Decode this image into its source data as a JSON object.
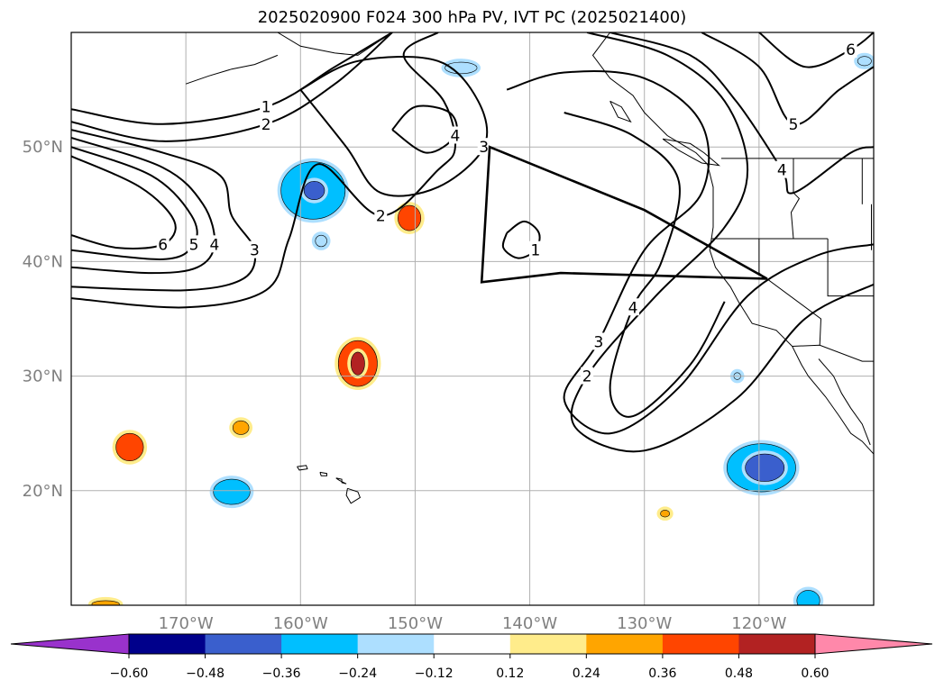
{
  "title": "2025020900 F024 300 hPa PV, IVT PC (2025021400)",
  "chart_data": {
    "type": "contour",
    "title": "2025020900 F024 300 hPa PV, IVT PC (2025021400)",
    "projection": "PlateCarree",
    "lon_range": [
      -180,
      -110
    ],
    "lat_range": [
      10,
      60
    ],
    "x_ticks": [
      {
        "value": -170,
        "label": "170°W"
      },
      {
        "value": -160,
        "label": "160°W"
      },
      {
        "value": -150,
        "label": "150°W"
      },
      {
        "value": -140,
        "label": "140°W"
      },
      {
        "value": -130,
        "label": "130°W"
      },
      {
        "value": -120,
        "label": "120°W"
      }
    ],
    "y_ticks": [
      {
        "value": 20,
        "label": "20°N"
      },
      {
        "value": 30,
        "label": "30°N"
      },
      {
        "value": 40,
        "label": "40°N"
      },
      {
        "value": 50,
        "label": "50°N"
      }
    ],
    "grid": true,
    "pv_contour_labels": [
      "1",
      "2",
      "3",
      "4",
      "5",
      "6"
    ],
    "colorbar": {
      "orientation": "horizontal",
      "extend": "both",
      "levels": [
        "-0.60",
        "-0.48",
        "-0.36",
        "-0.24",
        "-0.12",
        "0.12",
        "0.24",
        "0.36",
        "0.48",
        "0.60"
      ],
      "colors": [
        "#9932CC",
        "#00008B",
        "#3A5FCD",
        "#00BFFF",
        "#ADDFFF",
        "#FFFFFF",
        "#FFEC8B",
        "#FFA500",
        "#FF4500",
        "#B22222",
        "#FF88AA"
      ]
    },
    "region_box": [
      [
        -143.5,
        50
      ],
      [
        -130,
        44.5
      ],
      [
        -119.3,
        38.5
      ],
      [
        -137.3,
        39
      ],
      [
        -144.2,
        38.2
      ]
    ],
    "pv_contours": [
      {
        "level": "1",
        "points": [
          [
            -180,
            53.3
          ],
          [
            -172,
            52
          ],
          [
            -163,
            53.5
          ],
          [
            -157,
            57
          ],
          [
            -152,
            60
          ]
        ]
      },
      {
        "level": "2",
        "points": [
          [
            -180,
            52.2
          ],
          [
            -172,
            50.5
          ],
          [
            -163,
            52
          ],
          [
            -157,
            55.5
          ],
          [
            -152,
            60
          ]
        ]
      },
      {
        "level": "3",
        "points": [
          [
            -180,
            51.5
          ],
          [
            -172,
            49.5
          ],
          [
            -167,
            47.5
          ],
          [
            -166,
            44
          ],
          [
            -164,
            41
          ],
          [
            -165,
            38.5
          ],
          [
            -170,
            37.5
          ],
          [
            -180,
            37.8
          ]
        ]
      },
      {
        "level": "4",
        "points": [
          [
            -180,
            50.8
          ],
          [
            -172,
            48.2
          ],
          [
            -168.5,
            45
          ],
          [
            -167.5,
            41.5
          ],
          [
            -169,
            39.5
          ],
          [
            -173,
            39
          ],
          [
            -180,
            39.5
          ]
        ]
      },
      {
        "level": "5",
        "points": [
          [
            -180,
            50
          ],
          [
            -173,
            47.5
          ],
          [
            -169.5,
            44
          ],
          [
            -169.3,
            41.5
          ],
          [
            -172,
            40.2
          ],
          [
            -180,
            41
          ]
        ]
      },
      {
        "level": "6",
        "points": [
          [
            -180,
            49.2
          ],
          [
            -174,
            46.5
          ],
          [
            -171,
            43.5
          ],
          [
            -172,
            41.5
          ],
          [
            -176,
            41.2
          ],
          [
            -180,
            42.3
          ]
        ]
      },
      {
        "level": "2",
        "points": [
          [
            -180,
            36.8
          ],
          [
            -170,
            36
          ],
          [
            -163,
            37.5
          ],
          [
            -161,
            42
          ],
          [
            -158.5,
            48.5
          ],
          [
            -153,
            44
          ],
          [
            -148,
            48
          ],
          [
            -146.5,
            50
          ],
          [
            -147.5,
            54
          ],
          [
            -151,
            58
          ],
          [
            -148,
            60
          ]
        ]
      },
      {
        "level": "3",
        "points": [
          [
            -160,
            55
          ],
          [
            -155,
            57.5
          ],
          [
            -148,
            57.5
          ],
          [
            -144.5,
            54
          ],
          [
            -144,
            50
          ],
          [
            -148,
            46.5
          ],
          [
            -153,
            46
          ],
          [
            -156,
            50
          ],
          [
            -160,
            55
          ]
        ]
      },
      {
        "level": "4",
        "points": [
          [
            -152,
            51.5
          ],
          [
            -150,
            53.5
          ],
          [
            -147,
            53
          ],
          [
            -146.5,
            51
          ],
          [
            -149,
            49.5
          ],
          [
            -152,
            51.5
          ]
        ]
      },
      {
        "level": "1",
        "points": [
          [
            -142,
            42.5
          ],
          [
            -140.5,
            43.5
          ],
          [
            -139.2,
            42.5
          ],
          [
            -139.5,
            41
          ],
          [
            -141,
            40.3
          ],
          [
            -142.3,
            41.2
          ],
          [
            -142,
            42.5
          ]
        ]
      },
      {
        "level": "3",
        "points": [
          [
            -142,
            55
          ],
          [
            -137,
            56.5
          ],
          [
            -130,
            56
          ],
          [
            -125,
            52
          ],
          [
            -125,
            46
          ],
          [
            -130,
            41
          ],
          [
            -134,
            33
          ],
          [
            -137,
            28
          ],
          [
            -133,
            25
          ],
          [
            -127,
            29
          ],
          [
            -121,
            37
          ],
          [
            -115,
            40.5
          ],
          [
            -110,
            41.5
          ]
        ]
      },
      {
        "level": "2",
        "points": [
          [
            -135,
            60
          ],
          [
            -128,
            58
          ],
          [
            -123,
            54
          ],
          [
            -121,
            48
          ],
          [
            -123,
            43
          ],
          [
            -129,
            37
          ],
          [
            -135,
            30
          ],
          [
            -136,
            25.5
          ],
          [
            -130,
            23.5
          ],
          [
            -122,
            28
          ],
          [
            -116,
            35
          ],
          [
            -110,
            38
          ]
        ]
      },
      {
        "level": "4",
        "points": [
          [
            -137,
            53
          ],
          [
            -131,
            51
          ],
          [
            -127,
            47
          ],
          [
            -128.5,
            40
          ],
          [
            -131,
            36
          ],
          [
            -133,
            29
          ],
          [
            -131,
            26.5
          ],
          [
            -126,
            31
          ],
          [
            -123,
            36.5
          ]
        ]
      },
      {
        "level": "4",
        "points": [
          [
            -133,
            60
          ],
          [
            -126,
            58
          ],
          [
            -122,
            54
          ],
          [
            -118,
            48
          ],
          [
            -117,
            46
          ],
          [
            -112,
            49.5
          ],
          [
            -110,
            50
          ]
        ]
      },
      {
        "level": "5",
        "points": [
          [
            -125,
            60
          ],
          [
            -120,
            57
          ],
          [
            -117,
            52
          ],
          [
            -113,
            55
          ],
          [
            -110,
            57
          ]
        ]
      },
      {
        "level": "6",
        "points": [
          [
            -120,
            60
          ],
          [
            -116,
            57
          ],
          [
            -112,
            58.5
          ],
          [
            -110,
            60
          ]
        ]
      }
    ],
    "ivt_anomaly_blobs": [
      {
        "value": -0.36,
        "lon": -158.9,
        "lat": 46.2,
        "rx": 2.8,
        "ry": 2.5
      },
      {
        "value": -0.48,
        "lon": -158.8,
        "lat": 46.2,
        "rx": 0.9,
        "ry": 0.8
      },
      {
        "value": 0.36,
        "lon": -150.5,
        "lat": 43.8,
        "rx": 1.0,
        "ry": 1.1
      },
      {
        "value": 0.36,
        "lon": -155,
        "lat": 31.1,
        "rx": 1.7,
        "ry": 2.0
      },
      {
        "value": 0.48,
        "lon": -155,
        "lat": 31.1,
        "rx": 0.6,
        "ry": 1.0
      },
      {
        "value": -0.36,
        "lon": -119.8,
        "lat": 22,
        "rx": 3.0,
        "ry": 2.1
      },
      {
        "value": -0.48,
        "lon": -119.5,
        "lat": 22,
        "rx": 1.7,
        "ry": 1.2
      },
      {
        "value": -0.36,
        "lon": -166,
        "lat": 19.9,
        "rx": 1.6,
        "ry": 1.1
      },
      {
        "value": 0.36,
        "lon": -174.9,
        "lat": 23.8,
        "rx": 1.2,
        "ry": 1.2
      },
      {
        "value": -0.24,
        "lon": -146,
        "lat": 56.9,
        "rx": 1.4,
        "ry": 0.5
      },
      {
        "value": 0.24,
        "lon": -165.2,
        "lat": 25.5,
        "rx": 0.7,
        "ry": 0.6
      },
      {
        "value": 0.24,
        "lon": -128.2,
        "lat": 18,
        "rx": 0.4,
        "ry": 0.3
      },
      {
        "value": -0.36,
        "lon": -115.7,
        "lat": 10.4,
        "rx": 1.0,
        "ry": 0.9
      },
      {
        "value": 0.24,
        "lon": -177,
        "lat": 10.1,
        "rx": 1.2,
        "ry": 0.3
      },
      {
        "value": -0.24,
        "lon": -121.9,
        "lat": 30,
        "rx": 0.3,
        "ry": 0.3
      },
      {
        "value": -0.24,
        "lon": -110.8,
        "lat": 57.5,
        "rx": 0.6,
        "ry": 0.4
      },
      {
        "value": -0.24,
        "lon": -158.2,
        "lat": 41.8,
        "rx": 0.5,
        "ry": 0.5
      }
    ]
  }
}
